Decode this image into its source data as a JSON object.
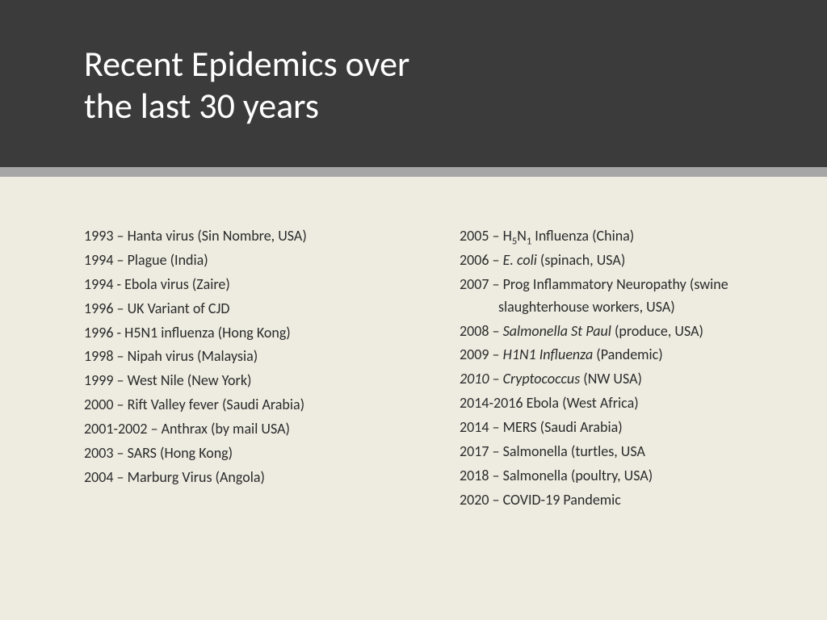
{
  "header": {
    "title_line1": "Recent Epidemics over",
    "title_line2": "the last 30 years"
  },
  "colors": {
    "header_bg": "#3b3b3b",
    "divider": "#a6a6a6",
    "page_bg": "#eeece1",
    "title_color": "#ffffff",
    "text_color": "#2a2a2a"
  },
  "typography": {
    "title_fontsize": 44,
    "body_fontsize": 18,
    "font_family": "Calibri"
  },
  "left_column": [
    {
      "html": "1993 – Hanta virus (Sin Nombre, USA)"
    },
    {
      "html": "1994 – Plague (India)"
    },
    {
      "html": "1994 - Ebola virus (Zaire)"
    },
    {
      "html": "1996 – UK Variant of CJD"
    },
    {
      "html": "1996 - H5N1 influenza (Hong Kong)"
    },
    {
      "html": "1998 – Nipah virus (Malaysia)"
    },
    {
      "html": "1999 – West Nile (New York)"
    },
    {
      "html": "2000 – Rift Valley fever (Saudi Arabia)"
    },
    {
      "html": "2001-2002 – Anthrax (by mail USA)"
    },
    {
      "html": "2003 – SARS (Hong Kong)"
    },
    {
      "html": "2004 – Marburg Virus (Angola)"
    }
  ],
  "right_column": [
    {
      "html": "2005 – H<sub>5</sub>N<sub>1</sub> Influenza (China)"
    },
    {
      "html": "2006 – <em>E. coli</em> (spinach, USA)"
    },
    {
      "html": "2007 – Prog Inflammatory Neuropathy (swine slaughterhouse workers, USA)",
      "wrap": true
    },
    {
      "html": "2008 – <em>Salmonella St Paul</em> (produce, USA)"
    },
    {
      "html": "2009 – <em>H1N1 Influenza</em> (Pandemic)"
    },
    {
      "html": "<em>2010 – Cryptococcus</em> (NW USA)"
    },
    {
      "html": "2014-2016 Ebola (West Africa)"
    },
    {
      "html": "2014 – MERS (Saudi Arabia)"
    },
    {
      "html": "2017 – Salmonella (turtles, USA"
    },
    {
      "html": "2018 – Salmonella (poultry, USA)"
    },
    {
      "html": "2020 – COVID-19 Pandemic"
    }
  ]
}
